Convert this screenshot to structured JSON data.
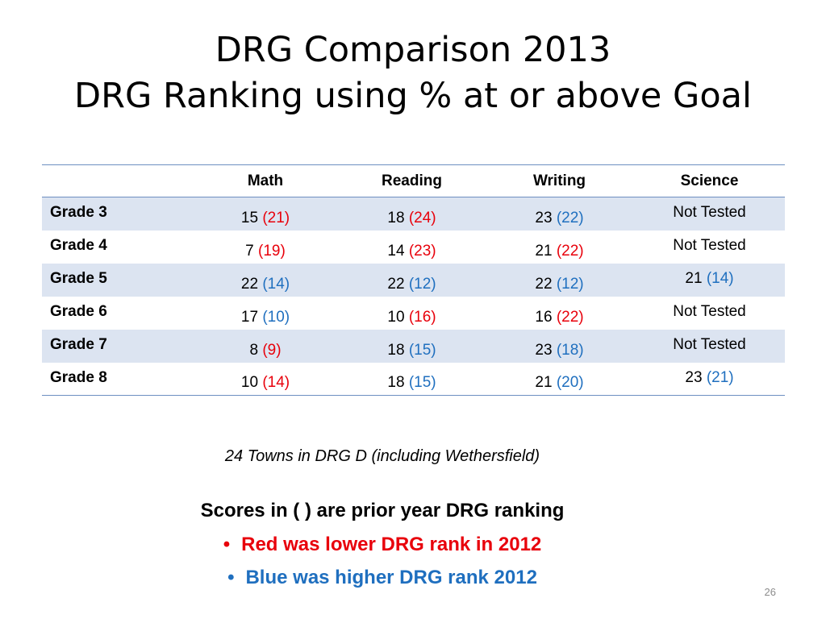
{
  "title": {
    "line1": "DRG Comparison 2013",
    "line2": "DRG Ranking using % at or above Goal"
  },
  "table": {
    "columns": [
      "",
      "Math",
      "Reading",
      "Writing",
      "Science"
    ],
    "rows": [
      {
        "label": "Grade 3",
        "cells": [
          {
            "value": "15",
            "prior": "(21)",
            "trend": "lower"
          },
          {
            "value": "18",
            "prior": "(24)",
            "trend": "lower"
          },
          {
            "value": "23",
            "prior": "(22)",
            "trend": "higher"
          },
          {
            "text": "Not Tested"
          }
        ]
      },
      {
        "label": "Grade 4",
        "cells": [
          {
            "value": "7",
            "prior": "(19)",
            "trend": "lower"
          },
          {
            "value": "14",
            "prior": "(23)",
            "trend": "lower"
          },
          {
            "value": "21",
            "prior": "(22)",
            "trend": "lower"
          },
          {
            "text": "Not Tested"
          }
        ]
      },
      {
        "label": "Grade 5",
        "cells": [
          {
            "value": "22",
            "prior": "(14)",
            "trend": "higher"
          },
          {
            "value": "22",
            "prior": "(12)",
            "trend": "higher"
          },
          {
            "value": "22",
            "prior": "(12)",
            "trend": "higher"
          },
          {
            "value": "21",
            "prior": "(14)",
            "trend": "higher"
          }
        ]
      },
      {
        "label": "Grade 6",
        "cells": [
          {
            "value": "17",
            "prior": "(10)",
            "trend": "higher"
          },
          {
            "value": "10",
            "prior": "(16)",
            "trend": "lower"
          },
          {
            "value": "16",
            "prior": "(22)",
            "trend": "lower"
          },
          {
            "text": "Not Tested"
          }
        ]
      },
      {
        "label": "Grade 7",
        "cells": [
          {
            "value": "8",
            "prior": "(9)",
            "trend": "lower"
          },
          {
            "value": "18",
            "prior": "(15)",
            "trend": "higher"
          },
          {
            "value": "23",
            "prior": "(18)",
            "trend": "higher"
          },
          {
            "text": "Not Tested"
          }
        ]
      },
      {
        "label": "Grade 8",
        "cells": [
          {
            "value": "10",
            "prior": "(14)",
            "trend": "lower"
          },
          {
            "value": "18",
            "prior": "(15)",
            "trend": "higher"
          },
          {
            "value": "21",
            "prior": "(20)",
            "trend": "higher"
          },
          {
            "value": "23",
            "prior": "(21)",
            "trend": "higher"
          }
        ]
      }
    ]
  },
  "note": "24 Towns in DRG D (including Wethersfield)",
  "legend": {
    "heading": "Scores in ( ) are prior year DRG ranking",
    "bullet_symbol": "•",
    "red": "Red was lower  DRG  rank in 2012",
    "blue": "Blue was higher DRG rank 2012"
  },
  "colors": {
    "lower": "#e8000b",
    "higher": "#1f6fbf",
    "row_shade": "#dce4f1",
    "rule": "#6d8fc1"
  },
  "slide_number": "26"
}
